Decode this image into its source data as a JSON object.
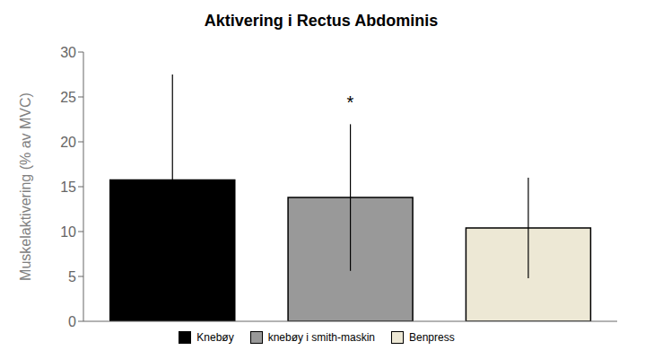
{
  "chart_data": {
    "type": "bar",
    "title": "Aktivering i Rectus Abdominis",
    "ylabel": "Muskelaktivering (% av MVC)",
    "categories": [
      "Knebøy",
      "knebøy i smith-maskin",
      "Benpress"
    ],
    "values": [
      15.75,
      13.79,
      10.4
    ],
    "errors_upper": [
      11.74,
      8.17,
      5.6
    ],
    "errors_lower": [
      11.74,
      8.17,
      5.6
    ],
    "colors": [
      "#000000",
      "#999999",
      "#ede8d5"
    ],
    "ylim": [
      0,
      30
    ],
    "yticks": [
      0,
      5,
      10,
      15,
      20,
      25,
      30
    ],
    "annotations": [
      {
        "text": "*",
        "category": "knebøy i smith-maskin",
        "y": 23.2
      }
    ],
    "legend": "bottom",
    "tick_labels": "y",
    "grid": false
  }
}
